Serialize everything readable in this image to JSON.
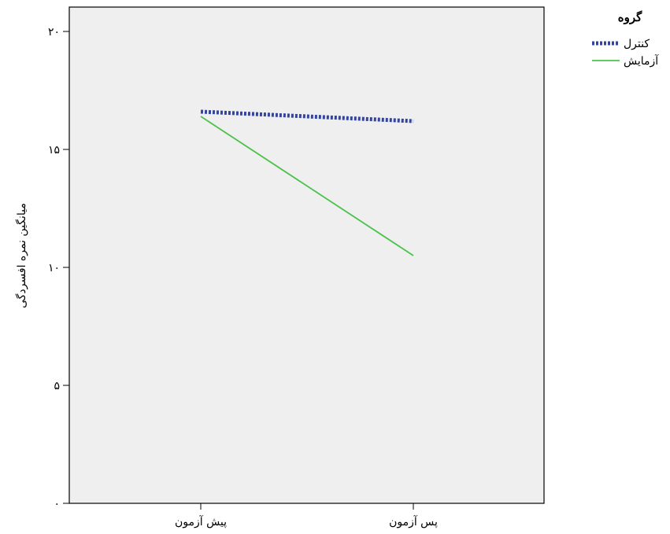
{
  "chart_data": {
    "type": "line",
    "categories": [
      "پیش آزمون",
      "پس آزمون"
    ],
    "ylabel": "میانگین نمره افسردگی",
    "ylim": [
      0,
      21
    ],
    "yticks": [
      {
        "value": 0,
        "label": "۰"
      },
      {
        "value": 5,
        "label": "۵"
      },
      {
        "value": 10,
        "label": "۱۰"
      },
      {
        "value": 15,
        "label": "۱۵"
      },
      {
        "value": 20,
        "label": "۲۰"
      }
    ],
    "legend_title": "گروه",
    "legend_position": "top-right",
    "series": [
      {
        "name": "کنترل",
        "values": [
          16.6,
          16.2
        ],
        "color": "#3344a0",
        "style": "dotted"
      },
      {
        "name": "آزمایش",
        "values": [
          16.4,
          10.5
        ],
        "color": "#4cc24c",
        "style": "solid"
      }
    ],
    "plot_background": "#efefef",
    "grid": false
  }
}
